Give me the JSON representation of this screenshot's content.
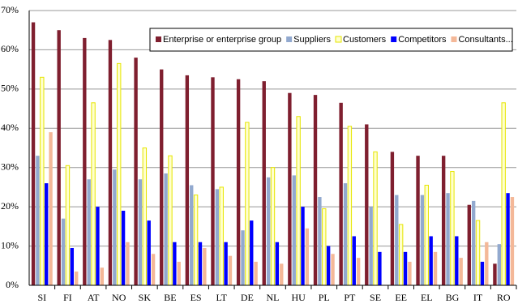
{
  "chart_data": {
    "type": "bar",
    "categories": [
      "SI",
      "FI",
      "AT",
      "NO",
      "SK",
      "BE",
      "ES",
      "LT",
      "DE",
      "NL",
      "HU",
      "PL",
      "PT",
      "SE",
      "EE",
      "EL",
      "BG",
      "IT",
      "RO"
    ],
    "series": [
      {
        "name": "Enterprise or enterprise group",
        "color": "#7f1f2f",
        "values": [
          67,
          65,
          63,
          62.5,
          58,
          55,
          53.5,
          53,
          52.5,
          52,
          49,
          48.5,
          46.5,
          41,
          34,
          33,
          33,
          20.5,
          5.5
        ]
      },
      {
        "name": "Suppliers",
        "color": "#92a9cf",
        "values": [
          33,
          17,
          27,
          29.5,
          27,
          28.5,
          25.5,
          24.5,
          14,
          27.5,
          28,
          22.5,
          26,
          20,
          23,
          23,
          23.5,
          21.5,
          10.5
        ]
      },
      {
        "name": "Customers",
        "color": "#ffffcc",
        "edgecolor": "#e6e600",
        "values": [
          53,
          30.5,
          46.5,
          56.5,
          35,
          33,
          23,
          25,
          41.5,
          30,
          43,
          19.5,
          40.5,
          34,
          15.5,
          25.5,
          29,
          16.5,
          46.5
        ]
      },
      {
        "name": "Competitors",
        "color": "#0000ff",
        "values": [
          26,
          9.5,
          20,
          19,
          16.5,
          11,
          11,
          11,
          16.5,
          11,
          20,
          10,
          12.5,
          8.5,
          8.5,
          12.5,
          12.5,
          6,
          23.5
        ]
      },
      {
        "name": "Consultants...",
        "color": "#f4b898",
        "values": [
          39,
          3.5,
          4.5,
          11,
          8,
          6,
          9.5,
          7.5,
          6,
          5.5,
          14.5,
          8,
          7,
          null,
          6,
          8.5,
          7,
          11,
          22.5
        ]
      }
    ],
    "ylim": [
      0,
      70
    ],
    "yticks": [
      {
        "value": 0,
        "label": "0%"
      },
      {
        "value": 10,
        "label": "10%"
      },
      {
        "value": 20,
        "label": "20%"
      },
      {
        "value": 30,
        "label": "30%"
      },
      {
        "value": 40,
        "label": "40%"
      },
      {
        "value": 50,
        "label": "50%"
      },
      {
        "value": 60,
        "label": "60%"
      },
      {
        "value": 70,
        "label": "70%"
      }
    ],
    "grid": true
  }
}
